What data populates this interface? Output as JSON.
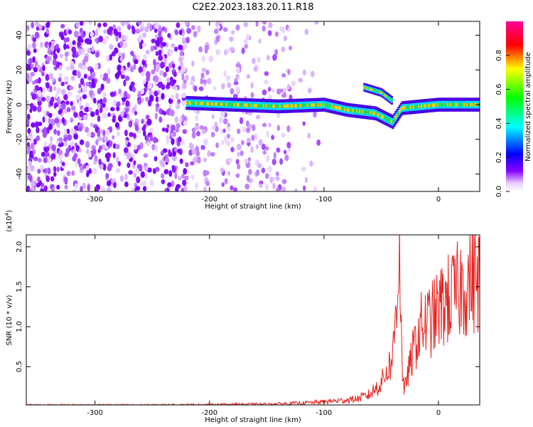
{
  "title": "C2E2.2023.183.20.11.R18",
  "chart_data": [
    {
      "type": "heatmap",
      "title": "C2E2.2023.183.20.11.R18",
      "xlabel": "Height of straight line (km)",
      "ylabel": "Frequency (Hz)",
      "xlim": [
        -360,
        36
      ],
      "ylim": [
        -50,
        48
      ],
      "xticks": [
        -300,
        -200,
        -100,
        0
      ],
      "yticks": [
        -40,
        -20,
        0,
        20,
        40
      ],
      "xtick_labels": [
        "-300",
        "-200",
        "-100",
        "0"
      ],
      "ytick_labels": [
        "-40",
        "-20",
        "0",
        "20",
        "40"
      ],
      "colorbar": {
        "label": "Normalized spectral amplitude",
        "range": [
          0,
          1
        ],
        "ticks": [
          "0.0",
          "0.2",
          "0.4",
          "0.6",
          "0.8"
        ],
        "colormap": [
          "#ffffff",
          "#6600ff",
          "#0000ff",
          "#00ffff",
          "#00ff00",
          "#ffff00",
          "#ff0000",
          "#ff00aa"
        ]
      },
      "signal_track": [
        {
          "x": -220,
          "y": 1
        },
        {
          "x": -180,
          "y": 0
        },
        {
          "x": -140,
          "y": -1
        },
        {
          "x": -100,
          "y": 0
        },
        {
          "x": -80,
          "y": -3
        },
        {
          "x": -55,
          "y": -5
        },
        {
          "x": -40,
          "y": -10
        },
        {
          "x": -32,
          "y": -2
        },
        {
          "x": 0,
          "y": 0
        },
        {
          "x": 36,
          "y": 0
        }
      ],
      "branch_track": [
        {
          "x": -65,
          "y": 10
        },
        {
          "x": -50,
          "y": 7
        },
        {
          "x": -40,
          "y": 2
        }
      ],
      "grid": false,
      "legend": "none"
    },
    {
      "type": "line",
      "xlabel": "Height of straight line (km)",
      "ylabel": "SNR (10 * v/v)",
      "y_multiplier": "(x10",
      "y_multiplier_exp": "4",
      "y_multiplier_close": ")",
      "xlim": [
        -360,
        36
      ],
      "ylim": [
        0.02,
        2.15
      ],
      "xticks": [
        -300,
        -200,
        -100,
        0
      ],
      "yticks": [
        0.5,
        1.0,
        1.5,
        2.0
      ],
      "xtick_labels": [
        "-300",
        "-200",
        "-100",
        "0"
      ],
      "ytick_labels": [
        "0.5",
        "1.0",
        "1.5",
        "2.0"
      ],
      "series": [
        {
          "color": "#e8231f",
          "x": [
            -360,
            -300,
            -250,
            -200,
            -170,
            -150,
            -130,
            -110,
            -100,
            -90,
            -80,
            -70,
            -60,
            -50,
            -45,
            -40,
            -36,
            -34,
            -32,
            -30,
            -28,
            -25,
            -22,
            -18,
            -15,
            -10,
            -5,
            0,
            5,
            10,
            15,
            20,
            25,
            30,
            36
          ],
          "y": [
            0.02,
            0.02,
            0.02,
            0.025,
            0.03,
            0.03,
            0.04,
            0.05,
            0.06,
            0.07,
            0.08,
            0.1,
            0.15,
            0.3,
            0.45,
            0.6,
            1.5,
            2.1,
            0.6,
            0.15,
            0.35,
            0.5,
            0.7,
            0.9,
            1.0,
            1.05,
            1.1,
            1.2,
            1.3,
            1.35,
            1.4,
            1.5,
            1.55,
            1.6,
            1.62
          ]
        }
      ],
      "grid": false,
      "legend": "none"
    }
  ]
}
